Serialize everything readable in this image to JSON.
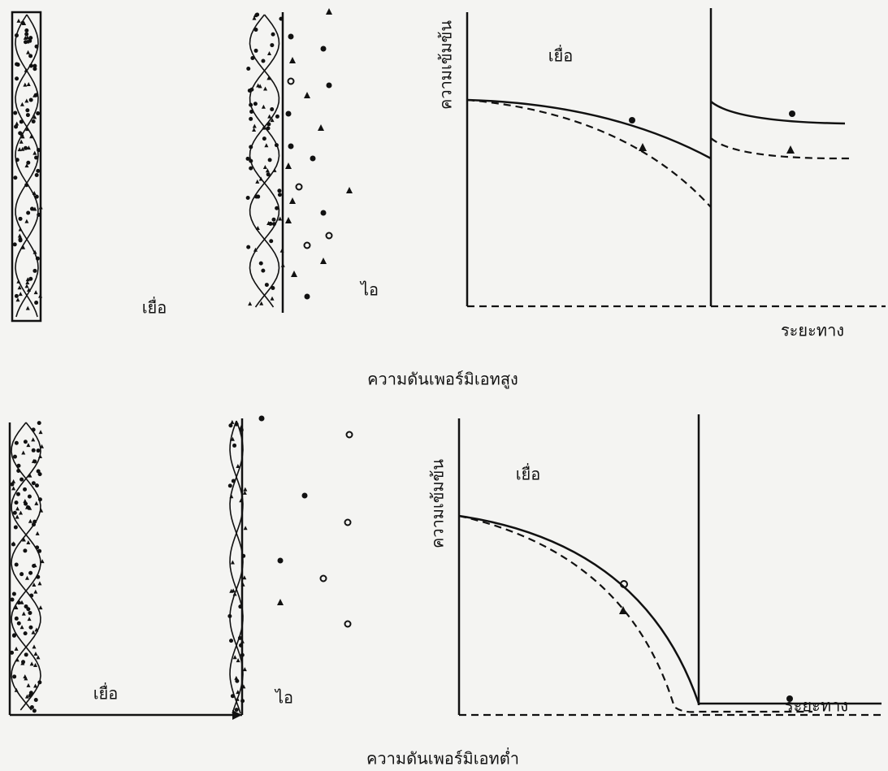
{
  "panels": [
    {
      "membrane_label": "เยื่อ",
      "vapor_label": "ไอ",
      "graph": {
        "y_label": "ความเข้มข้น",
        "membrane_label": "เยื่อ",
        "x_label": "ระยะทาง"
      },
      "caption": "ความดันเพอร์มิเอทสูง"
    },
    {
      "membrane_label": "เยื่อ",
      "vapor_label": "ไอ",
      "graph": {
        "y_label": "ความเข้มข้น",
        "membrane_label": "เยื่อ",
        "x_label": "ระยะทาง"
      },
      "caption": "ความดันเพอร์มิเอทต่ำ"
    }
  ]
}
